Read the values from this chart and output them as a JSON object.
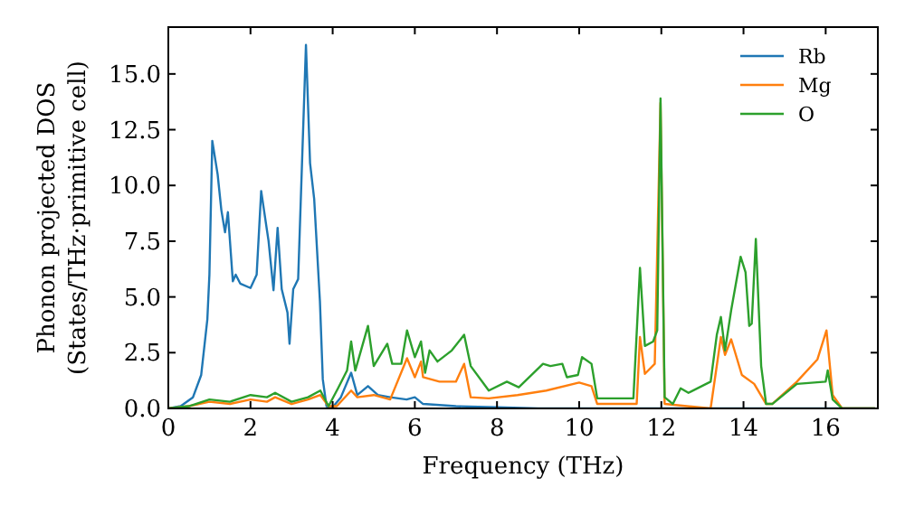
{
  "chart_data": {
    "type": "line",
    "xlabel": "Frequency (THz)",
    "ylabel": "Phonon projected DOS\n(States/THz·primitive cell)",
    "xlim": [
      0,
      17.27
    ],
    "ylim": [
      0,
      17.1
    ],
    "xticks": [
      0,
      2,
      4,
      6,
      8,
      10,
      12,
      14,
      16
    ],
    "yticks": [
      {
        "value": 0,
        "label": "0.0"
      },
      {
        "value": 2.5,
        "label": "2.5"
      },
      {
        "value": 5,
        "label": "5.0"
      },
      {
        "value": 7.5,
        "label": "7.5"
      },
      {
        "value": 10,
        "label": "10.0"
      },
      {
        "value": 12.5,
        "label": "12.5"
      },
      {
        "value": 15,
        "label": "15.0"
      }
    ],
    "grid": false,
    "legend": "top right",
    "marker": "none",
    "line_style": "solid",
    "series": [
      {
        "name": "Rb",
        "color": "#1f77b4",
        "x": [
          0,
          0.3,
          0.6,
          0.8,
          0.95,
          1.0,
          1.07,
          1.2,
          1.29,
          1.38,
          1.45,
          1.57,
          1.64,
          1.75,
          2.0,
          2.15,
          2.26,
          2.44,
          2.56,
          2.66,
          2.76,
          2.9,
          2.95,
          3.04,
          3.16,
          3.35,
          3.45,
          3.55,
          3.69,
          3.76,
          3.85,
          4.0,
          4.2,
          4.45,
          4.6,
          4.86,
          5.1,
          5.4,
          5.8,
          6.0,
          6.2,
          7.0,
          8.0,
          9.0,
          17.2
        ],
        "values": [
          0,
          0.1,
          0.5,
          1.5,
          4,
          6,
          12.0,
          10.5,
          8.9,
          7.9,
          8.8,
          5.7,
          6.0,
          5.6,
          5.4,
          6.0,
          9.75,
          7.5,
          5.3,
          8.1,
          5.35,
          4.3,
          2.9,
          5.35,
          5.8,
          16.3,
          11.0,
          9.4,
          4.8,
          1.3,
          0.1,
          0.05,
          0.5,
          1.6,
          0.6,
          1.0,
          0.6,
          0.5,
          0.4,
          0.5,
          0.2,
          0.1,
          0.05,
          0,
          0
        ]
      },
      {
        "name": "Mg",
        "color": "#ff7f0e",
        "x": [
          0,
          0.5,
          1.0,
          1.5,
          2.0,
          2.4,
          2.6,
          3.0,
          3.4,
          3.7,
          3.9,
          4.1,
          4.45,
          4.6,
          5.0,
          5.4,
          5.81,
          6.0,
          6.15,
          6.2,
          6.6,
          7.0,
          7.2,
          7.36,
          7.8,
          8.5,
          9.2,
          10.0,
          10.3,
          10.44,
          11.4,
          11.48,
          11.6,
          11.84,
          11.98,
          12.08,
          13.2,
          13.45,
          13.55,
          13.7,
          13.96,
          14.26,
          14.55,
          14.7,
          15.3,
          15.8,
          16.02,
          16.17,
          16.4,
          17.2
        ],
        "values": [
          0,
          0.1,
          0.3,
          0.2,
          0.4,
          0.3,
          0.5,
          0.2,
          0.4,
          0.6,
          0.1,
          0.1,
          0.8,
          0.5,
          0.6,
          0.4,
          2.25,
          1.4,
          2.1,
          1.4,
          1.2,
          1.2,
          2.0,
          0.5,
          0.45,
          0.6,
          0.8,
          1.16,
          1.0,
          0.2,
          0.2,
          3.2,
          1.55,
          2.0,
          13.7,
          0.2,
          0,
          3.2,
          2.4,
          3.1,
          1.5,
          1.1,
          0.2,
          0.2,
          1.2,
          2.2,
          3.5,
          0.6,
          0,
          0
        ]
      },
      {
        "name": "O",
        "color": "#2ca02c",
        "x": [
          0,
          0.5,
          1.0,
          1.5,
          2.0,
          2.4,
          2.6,
          3.0,
          3.4,
          3.7,
          3.9,
          4.13,
          4.35,
          4.45,
          4.55,
          4.86,
          5.0,
          5.33,
          5.45,
          5.67,
          5.81,
          6.0,
          6.15,
          6.25,
          6.36,
          6.55,
          6.9,
          7.2,
          7.36,
          7.8,
          8.24,
          8.53,
          9.12,
          9.3,
          9.59,
          9.7,
          9.97,
          10.07,
          10.3,
          10.44,
          11.32,
          11.48,
          11.6,
          11.8,
          11.9,
          11.98,
          12.08,
          12.28,
          12.47,
          12.66,
          13.2,
          13.35,
          13.45,
          13.55,
          13.7,
          13.93,
          14.05,
          14.14,
          14.2,
          14.3,
          14.43,
          14.55,
          14.7,
          15.3,
          16.0,
          16.05,
          16.17,
          16.4,
          17.2
        ],
        "values": [
          0,
          0.1,
          0.4,
          0.3,
          0.6,
          0.5,
          0.7,
          0.3,
          0.5,
          0.8,
          0.1,
          0.9,
          1.7,
          3.0,
          1.7,
          3.7,
          1.9,
          2.9,
          2.0,
          2.0,
          3.5,
          2.3,
          3.0,
          1.6,
          2.6,
          2.1,
          2.6,
          3.3,
          1.9,
          0.8,
          1.2,
          0.95,
          2.0,
          1.9,
          2.0,
          1.4,
          1.5,
          2.3,
          2.0,
          0.45,
          0.45,
          6.3,
          2.8,
          3.0,
          3.5,
          13.9,
          0.5,
          0.2,
          0.9,
          0.7,
          1.2,
          3.3,
          4.1,
          2.6,
          4.4,
          6.8,
          6.1,
          3.7,
          3.8,
          7.6,
          1.9,
          0.2,
          0.2,
          1.1,
          1.2,
          1.7,
          0.4,
          0,
          0
        ]
      }
    ]
  }
}
